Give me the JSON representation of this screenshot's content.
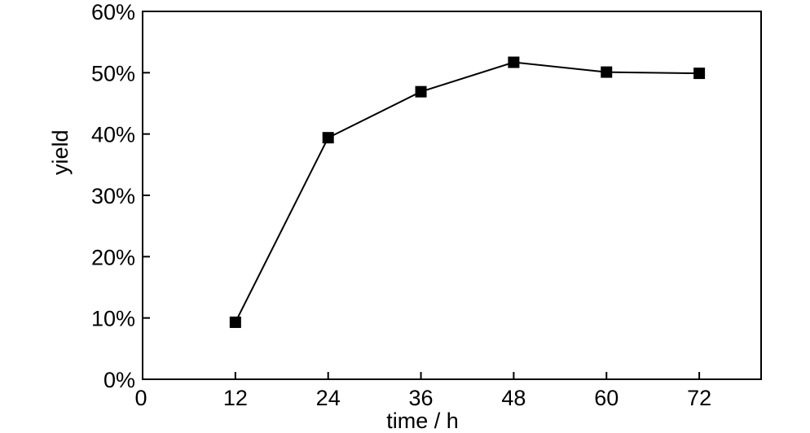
{
  "chart_data": {
    "type": "line",
    "title": "",
    "xlabel": "time / h",
    "ylabel": "yield",
    "xlim": [
      0,
      80
    ],
    "ylim": [
      0,
      0.6
    ],
    "x_ticks": [
      0,
      12,
      24,
      36,
      48,
      60,
      72
    ],
    "x_tick_labels": [
      "0",
      "12",
      "24",
      "36",
      "48",
      "60",
      "72"
    ],
    "y_ticks": [
      0,
      0.1,
      0.2,
      0.3,
      0.4,
      0.5,
      0.6
    ],
    "y_tick_labels": [
      "0%",
      "10%",
      "20%",
      "30%",
      "40%",
      "50%",
      "60%"
    ],
    "grid": false,
    "legend": "none",
    "series": [
      {
        "x": [
          12,
          24,
          36,
          48,
          60,
          72
        ],
        "y": [
          0.093,
          0.394,
          0.469,
          0.517,
          0.501,
          0.499
        ],
        "marker": "square",
        "color": "#000000"
      }
    ]
  }
}
